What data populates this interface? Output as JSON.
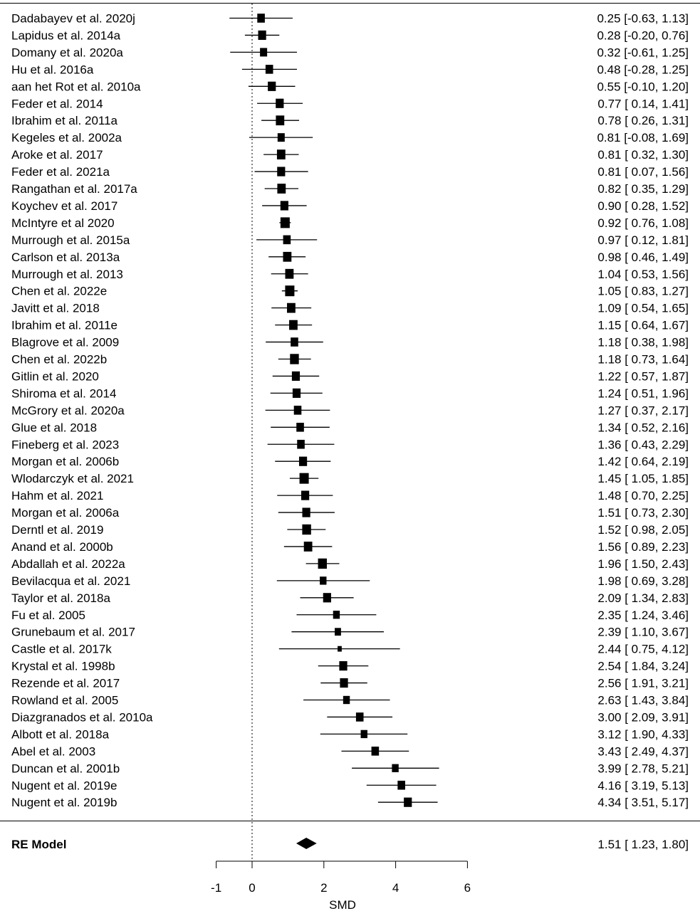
{
  "chart_data": {
    "type": "forest",
    "xlabel": "SMD",
    "xticks": [
      -1,
      0,
      2,
      4,
      6
    ],
    "xlim": [
      -1,
      6
    ],
    "reference_line": 0,
    "studies": [
      {
        "label": "Dadabayev et al. 2020j",
        "est": 0.25,
        "lo": -0.63,
        "hi": 1.13,
        "ci_text": "0.25 [-0.63, 1.13]",
        "w": 0.55
      },
      {
        "label": "Lapidus et al. 2014a",
        "est": 0.28,
        "lo": -0.2,
        "hi": 0.76,
        "ci_text": "0.28 [-0.20, 0.76]",
        "w": 0.6
      },
      {
        "label": "Domany et al. 2020a",
        "est": 0.32,
        "lo": -0.61,
        "hi": 1.25,
        "ci_text": "0.32 [-0.61, 1.25]",
        "w": 0.5
      },
      {
        "label": "Hu et al. 2016a",
        "est": 0.48,
        "lo": -0.28,
        "hi": 1.25,
        "ci_text": "0.48 [-0.28, 1.25]",
        "w": 0.55
      },
      {
        "label": "aan het Rot et al. 2010a",
        "est": 0.55,
        "lo": -0.1,
        "hi": 1.2,
        "ci_text": "0.55 [-0.10, 1.20]",
        "w": 0.6
      },
      {
        "label": "Feder et al. 2014",
        "est": 0.77,
        "lo": 0.14,
        "hi": 1.41,
        "ci_text": "0.77 [ 0.14, 1.41]",
        "w": 0.6
      },
      {
        "label": "Ibrahim et al. 2011a",
        "est": 0.78,
        "lo": 0.26,
        "hi": 1.31,
        "ci_text": "0.78 [ 0.26, 1.31]",
        "w": 0.65
      },
      {
        "label": "Kegeles et al. 2002a",
        "est": 0.81,
        "lo": -0.08,
        "hi": 1.69,
        "ci_text": "0.81 [-0.08, 1.69]",
        "w": 0.5
      },
      {
        "label": "Aroke et al. 2017",
        "est": 0.81,
        "lo": 0.32,
        "hi": 1.3,
        "ci_text": "0.81 [ 0.32, 1.30]",
        "w": 0.65
      },
      {
        "label": "Feder et al. 2021a",
        "est": 0.81,
        "lo": 0.07,
        "hi": 1.56,
        "ci_text": "0.81 [ 0.07, 1.56]",
        "w": 0.6
      },
      {
        "label": "Rangathan et al. 2017a",
        "est": 0.82,
        "lo": 0.35,
        "hi": 1.29,
        "ci_text": "0.82 [ 0.35, 1.29]",
        "w": 0.65
      },
      {
        "label": "Koychev et al. 2017",
        "est": 0.9,
        "lo": 0.28,
        "hi": 1.52,
        "ci_text": "0.90 [ 0.28, 1.52]",
        "w": 0.6
      },
      {
        "label": "McIntyre et al 2020",
        "est": 0.92,
        "lo": 0.76,
        "hi": 1.08,
        "ci_text": "0.92 [ 0.76, 1.08]",
        "w": 0.75
      },
      {
        "label": "Murrough et al. 2015a",
        "est": 0.97,
        "lo": 0.12,
        "hi": 1.81,
        "ci_text": "0.97 [ 0.12, 1.81]",
        "w": 0.55
      },
      {
        "label": "Carlson et al. 2013a",
        "est": 0.98,
        "lo": 0.46,
        "hi": 1.49,
        "ci_text": "0.98 [ 0.46, 1.49]",
        "w": 0.65
      },
      {
        "label": "Murrough et al. 2013",
        "est": 1.04,
        "lo": 0.53,
        "hi": 1.56,
        "ci_text": "1.04 [ 0.53, 1.56]",
        "w": 0.65
      },
      {
        "label": "Chen et al. 2022e",
        "est": 1.05,
        "lo": 0.83,
        "hi": 1.27,
        "ci_text": "1.05 [ 0.83, 1.27]",
        "w": 0.75
      },
      {
        "label": "Javitt et al. 2018",
        "est": 1.09,
        "lo": 0.54,
        "hi": 1.65,
        "ci_text": "1.09 [ 0.54, 1.65]",
        "w": 0.65
      },
      {
        "label": "Ibrahim et al. 2011e",
        "est": 1.15,
        "lo": 0.64,
        "hi": 1.67,
        "ci_text": "1.15 [ 0.64, 1.67]",
        "w": 0.65
      },
      {
        "label": "Blagrove et al. 2009",
        "est": 1.18,
        "lo": 0.38,
        "hi": 1.98,
        "ci_text": "1.18 [ 0.38, 1.98]",
        "w": 0.55
      },
      {
        "label": "Chen et al. 2022b",
        "est": 1.18,
        "lo": 0.73,
        "hi": 1.64,
        "ci_text": "1.18 [ 0.73, 1.64]",
        "w": 0.7
      },
      {
        "label": "Gitlin et al. 2020",
        "est": 1.22,
        "lo": 0.57,
        "hi": 1.87,
        "ci_text": "1.22 [ 0.57, 1.87]",
        "w": 0.6
      },
      {
        "label": "Shiroma et al. 2014",
        "est": 1.24,
        "lo": 0.51,
        "hi": 1.96,
        "ci_text": "1.24 [ 0.51, 1.96]",
        "w": 0.6
      },
      {
        "label": "McGrory et al. 2020a",
        "est": 1.27,
        "lo": 0.37,
        "hi": 2.17,
        "ci_text": "1.27 [ 0.37, 2.17]",
        "w": 0.55
      },
      {
        "label": "Glue et al. 2018",
        "est": 1.34,
        "lo": 0.52,
        "hi": 2.16,
        "ci_text": "1.34 [ 0.52, 2.16]",
        "w": 0.55
      },
      {
        "label": "Fineberg et al. 2023",
        "est": 1.36,
        "lo": 0.43,
        "hi": 2.29,
        "ci_text": "1.36 [ 0.43, 2.29]",
        "w": 0.55
      },
      {
        "label": "Morgan et al. 2006b",
        "est": 1.42,
        "lo": 0.64,
        "hi": 2.19,
        "ci_text": "1.42 [ 0.64, 2.19]",
        "w": 0.6
      },
      {
        "label": "Wlodarczyk et al. 2021",
        "est": 1.45,
        "lo": 1.05,
        "hi": 1.85,
        "ci_text": "1.45 [ 1.05, 1.85]",
        "w": 0.75
      },
      {
        "label": "Hahm et al. 2021",
        "est": 1.48,
        "lo": 0.7,
        "hi": 2.25,
        "ci_text": "1.48 [ 0.70, 2.25]",
        "w": 0.6
      },
      {
        "label": "Morgan et al. 2006a",
        "est": 1.51,
        "lo": 0.73,
        "hi": 2.3,
        "ci_text": "1.51 [ 0.73, 2.30]",
        "w": 0.6
      },
      {
        "label": "Derntl et al. 2019",
        "est": 1.52,
        "lo": 0.98,
        "hi": 2.05,
        "ci_text": "1.52 [ 0.98, 2.05]",
        "w": 0.7
      },
      {
        "label": "Anand et al. 2000b",
        "est": 1.56,
        "lo": 0.89,
        "hi": 2.23,
        "ci_text": "1.56 [ 0.89, 2.23]",
        "w": 0.65
      },
      {
        "label": "Abdallah et al. 2022a",
        "est": 1.96,
        "lo": 1.5,
        "hi": 2.43,
        "ci_text": "1.96 [ 1.50, 2.43]",
        "w": 0.7
      },
      {
        "label": "Bevilacqua et al. 2021",
        "est": 1.98,
        "lo": 0.69,
        "hi": 3.28,
        "ci_text": "1.98 [ 0.69, 3.28]",
        "w": 0.45
      },
      {
        "label": "Taylor et al. 2018a",
        "est": 2.09,
        "lo": 1.34,
        "hi": 2.83,
        "ci_text": "2.09 [ 1.34, 2.83]",
        "w": 0.6
      },
      {
        "label": "Fu et al. 2005",
        "est": 2.35,
        "lo": 1.24,
        "hi": 3.46,
        "ci_text": "2.35 [ 1.24, 3.46]",
        "w": 0.45
      },
      {
        "label": "Grunebaum et al. 2017",
        "est": 2.39,
        "lo": 1.1,
        "hi": 3.67,
        "ci_text": "2.39 [ 1.10, 3.67]",
        "w": 0.4
      },
      {
        "label": "Castle et al. 2017k",
        "est": 2.44,
        "lo": 0.75,
        "hi": 4.12,
        "ci_text": "2.44 [ 0.75, 4.12]",
        "w": 0.15
      },
      {
        "label": "Krystal et al. 1998b",
        "est": 2.54,
        "lo": 1.84,
        "hi": 3.24,
        "ci_text": "2.54 [ 1.84, 3.24]",
        "w": 0.6
      },
      {
        "label": "Rezende et al. 2017",
        "est": 2.56,
        "lo": 1.91,
        "hi": 3.21,
        "ci_text": "2.56 [ 1.91, 3.21]",
        "w": 0.6
      },
      {
        "label": "Rowland et al. 2005",
        "est": 2.63,
        "lo": 1.43,
        "hi": 3.84,
        "ci_text": "2.63 [ 1.43, 3.84]",
        "w": 0.45
      },
      {
        "label": "Diazgranados et al. 2010a",
        "est": 3.0,
        "lo": 2.09,
        "hi": 3.91,
        "ci_text": "3.00 [ 2.09, 3.91]",
        "w": 0.55
      },
      {
        "label": "Albott et al. 2018a",
        "est": 3.12,
        "lo": 1.9,
        "hi": 4.33,
        "ci_text": "3.12 [ 1.90, 4.33]",
        "w": 0.45
      },
      {
        "label": "Abel et al. 2003",
        "est": 3.43,
        "lo": 2.49,
        "hi": 4.37,
        "ci_text": "3.43 [ 2.49, 4.37]",
        "w": 0.55
      },
      {
        "label": "Duncan et al. 2001b",
        "est": 3.99,
        "lo": 2.78,
        "hi": 5.21,
        "ci_text": "3.99 [ 2.78, 5.21]",
        "w": 0.45
      },
      {
        "label": "Nugent et al. 2019e",
        "est": 4.16,
        "lo": 3.19,
        "hi": 5.13,
        "ci_text": "4.16 [ 3.19, 5.13]",
        "w": 0.55
      },
      {
        "label": "Nugent et al. 2019b",
        "est": 4.34,
        "lo": 3.51,
        "hi": 5.17,
        "ci_text": "4.34 [ 3.51, 5.17]",
        "w": 0.6
      }
    ],
    "summary": {
      "label": "RE Model",
      "est": 1.51,
      "lo": 1.23,
      "hi": 1.8,
      "ci_text": "1.51 [ 1.23, 1.80]"
    }
  }
}
